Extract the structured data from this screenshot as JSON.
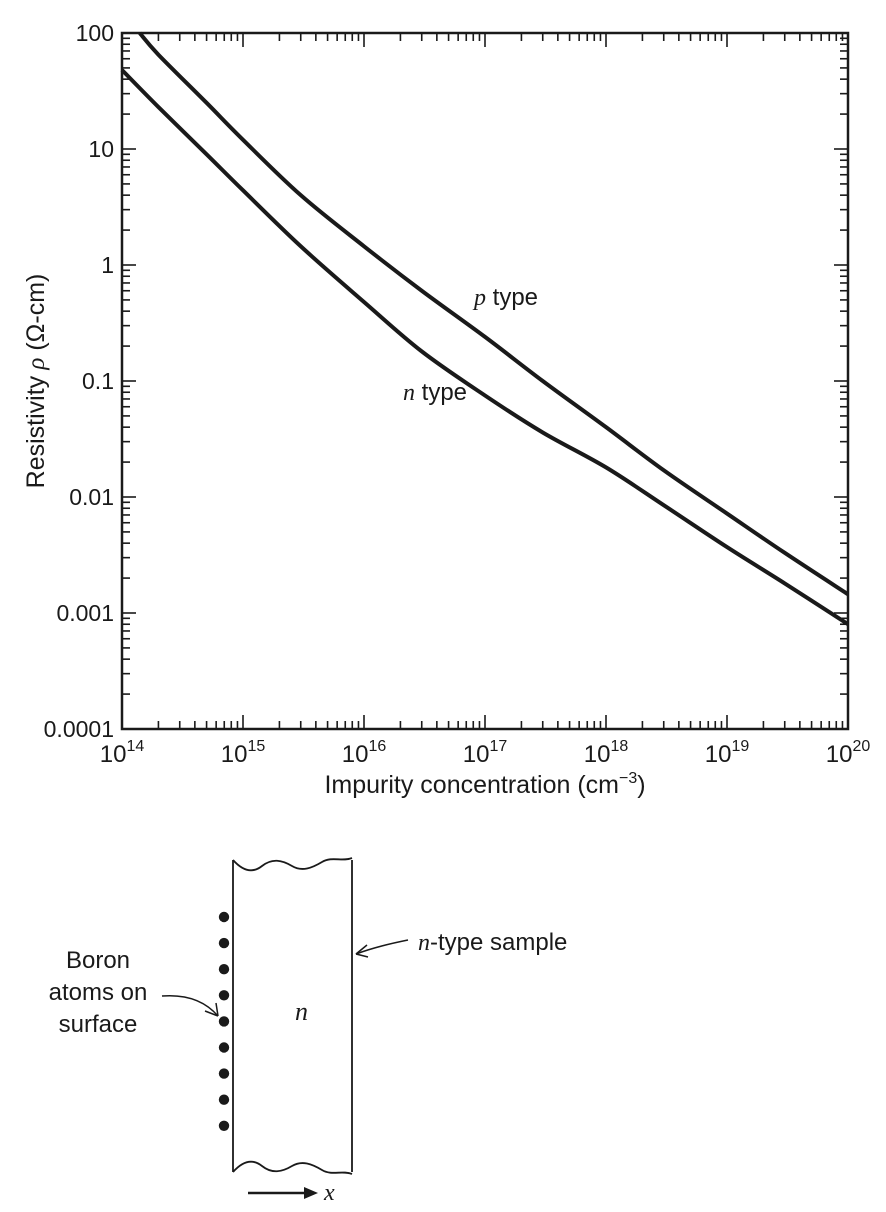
{
  "chart_data": {
    "type": "line",
    "title": "",
    "xlabel": "Impurity concentration (cm",
    "xlabel_exp": "−3",
    "xlabel_close": ")",
    "ylabel": "Resistivity",
    "ylabel_symbol": "ρ",
    "ylabel_unit": "(Ω-cm)",
    "xscale": "log",
    "yscale": "log",
    "xlim": [
      100000000000000.0,
      1e+20
    ],
    "ylim": [
      0.0001,
      100
    ],
    "grid": false,
    "legend": "none",
    "x_ticks": [
      {
        "value": 100000000000000.0,
        "base": "10",
        "exp": "14"
      },
      {
        "value": 1000000000000000.0,
        "base": "10",
        "exp": "15"
      },
      {
        "value": 1e+16,
        "base": "10",
        "exp": "16"
      },
      {
        "value": 1e+17,
        "base": "10",
        "exp": "17"
      },
      {
        "value": 1e+18,
        "base": "10",
        "exp": "18"
      },
      {
        "value": 1e+19,
        "base": "10",
        "exp": "19"
      },
      {
        "value": 1e+20,
        "base": "10",
        "exp": "20"
      }
    ],
    "y_ticks": [
      {
        "value": 100,
        "label": "100"
      },
      {
        "value": 10,
        "label": "10"
      },
      {
        "value": 1,
        "label": "1"
      },
      {
        "value": 0.1,
        "label": "0.1"
      },
      {
        "value": 0.01,
        "label": "0.01"
      },
      {
        "value": 0.001,
        "label": "0.001"
      },
      {
        "value": 0.0001,
        "label": "0.0001"
      }
    ],
    "series": [
      {
        "id": "p",
        "label_var": "p",
        "label_text": " type",
        "x": [
          140000000000000.0,
          200000000000000.0,
          500000000000000.0,
          1000000000000000.0,
          3000000000000000.0,
          1e+16,
          3e+16,
          1e+17,
          3e+17,
          1e+18,
          3e+18,
          1e+19,
          3e+19,
          1e+20
        ],
        "y": [
          100,
          65,
          25,
          12,
          4,
          1.45,
          0.6,
          0.24,
          0.1,
          0.04,
          0.017,
          0.0072,
          0.0033,
          0.00145
        ]
      },
      {
        "id": "n",
        "label_var": "n",
        "label_text": " type",
        "x": [
          100000000000000.0,
          200000000000000.0,
          500000000000000.0,
          1000000000000000.0,
          3000000000000000.0,
          1e+16,
          3e+16,
          1e+17,
          3e+17,
          1e+18,
          3e+18,
          1e+19,
          3e+19,
          1e+20
        ],
        "y": [
          48,
          23,
          9,
          4.4,
          1.45,
          0.48,
          0.18,
          0.075,
          0.036,
          0.018,
          0.0085,
          0.0037,
          0.0018,
          0.0008
        ]
      }
    ]
  },
  "diagram": {
    "sample_label_var": "n",
    "sample_label_text": "-type sample",
    "region_label": "n",
    "boron_lines": [
      "Boron",
      "atoms on",
      "surface"
    ],
    "axis_label": "x",
    "dot_count": 9
  }
}
